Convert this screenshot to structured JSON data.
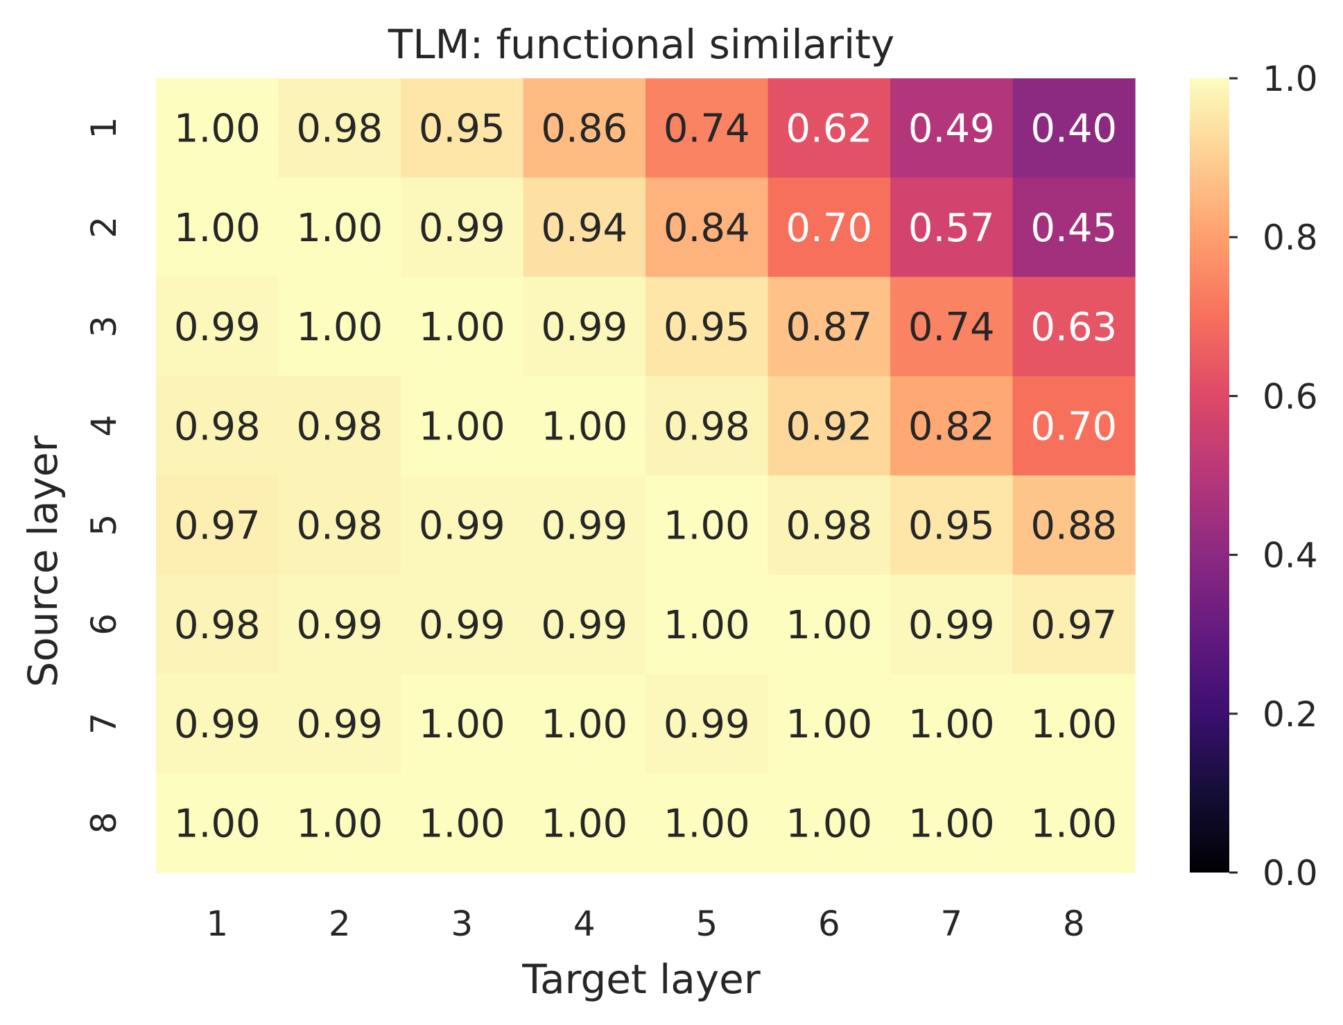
{
  "chart_data": {
    "type": "heatmap",
    "title": "TLM: functional similarity",
    "xlabel": "Target layer",
    "ylabel": "Source layer",
    "x_categories": [
      "1",
      "2",
      "3",
      "4",
      "5",
      "6",
      "7",
      "8"
    ],
    "y_categories": [
      "1",
      "2",
      "3",
      "4",
      "5",
      "6",
      "7",
      "8"
    ],
    "values": [
      [
        1.0,
        0.98,
        0.95,
        0.86,
        0.74,
        0.62,
        0.49,
        0.4
      ],
      [
        1.0,
        1.0,
        0.99,
        0.94,
        0.84,
        0.7,
        0.57,
        0.45
      ],
      [
        0.99,
        1.0,
        1.0,
        0.99,
        0.95,
        0.87,
        0.74,
        0.63
      ],
      [
        0.98,
        0.98,
        1.0,
        1.0,
        0.98,
        0.92,
        0.82,
        0.7
      ],
      [
        0.97,
        0.98,
        0.99,
        0.99,
        1.0,
        0.98,
        0.95,
        0.88
      ],
      [
        0.98,
        0.99,
        0.99,
        0.99,
        1.0,
        1.0,
        0.99,
        0.97
      ],
      [
        0.99,
        0.99,
        1.0,
        1.0,
        0.99,
        1.0,
        1.0,
        1.0
      ],
      [
        1.0,
        1.0,
        1.0,
        1.0,
        1.0,
        1.0,
        1.0,
        1.0
      ]
    ],
    "value_format": "0.00",
    "colorbar": {
      "colormap": "magma",
      "range": [
        0.0,
        1.0
      ],
      "ticks": [
        "0.0",
        "0.2",
        "0.4",
        "0.6",
        "0.8",
        "1.0"
      ]
    },
    "grid": false,
    "legend": "colorbar-right"
  }
}
